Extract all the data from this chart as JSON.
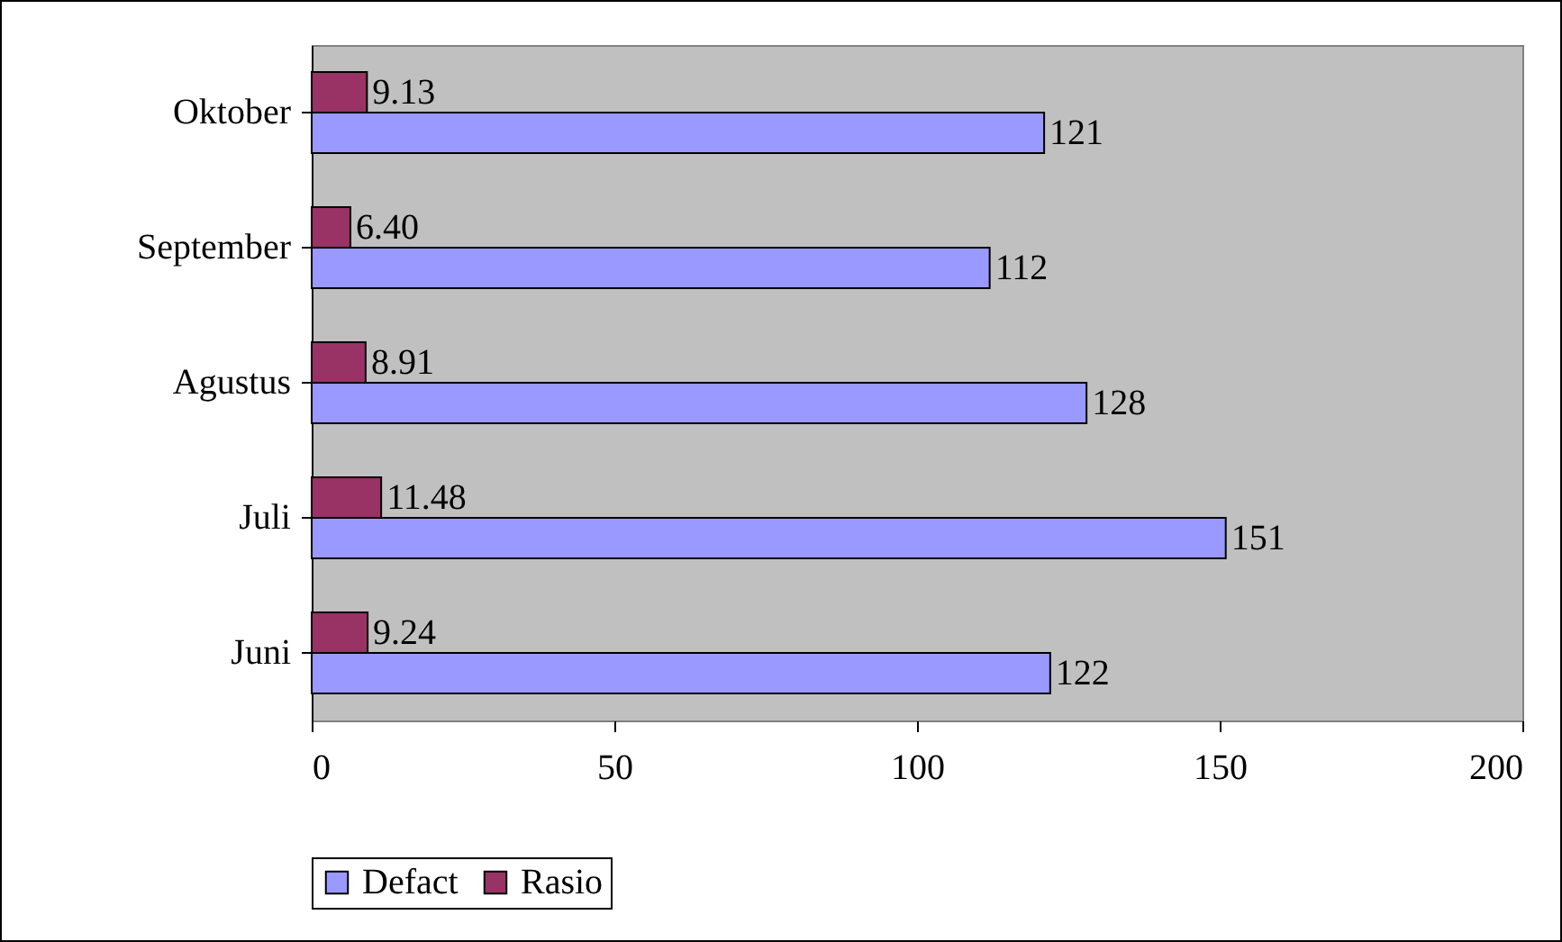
{
  "chart_data": {
    "type": "bar",
    "orientation": "horizontal",
    "categories": [
      "Oktober",
      "September",
      "Agustus",
      "Juli",
      "Juni"
    ],
    "series": [
      {
        "name": "Defact",
        "color": "#9999ff",
        "values": [
          121,
          112,
          128,
          151,
          122
        ],
        "value_labels": [
          "121",
          "112",
          "128",
          "151",
          "122"
        ]
      },
      {
        "name": "Rasio",
        "color": "#993366",
        "values": [
          9.13,
          6.4,
          8.91,
          11.48,
          9.24
        ],
        "value_labels": [
          "9.13",
          "6.40",
          "8.91",
          "11.48",
          "9.24"
        ]
      }
    ],
    "xlim": [
      0,
      200
    ],
    "xticks": [
      0,
      50,
      100,
      150,
      200
    ],
    "legend": "bottom"
  }
}
